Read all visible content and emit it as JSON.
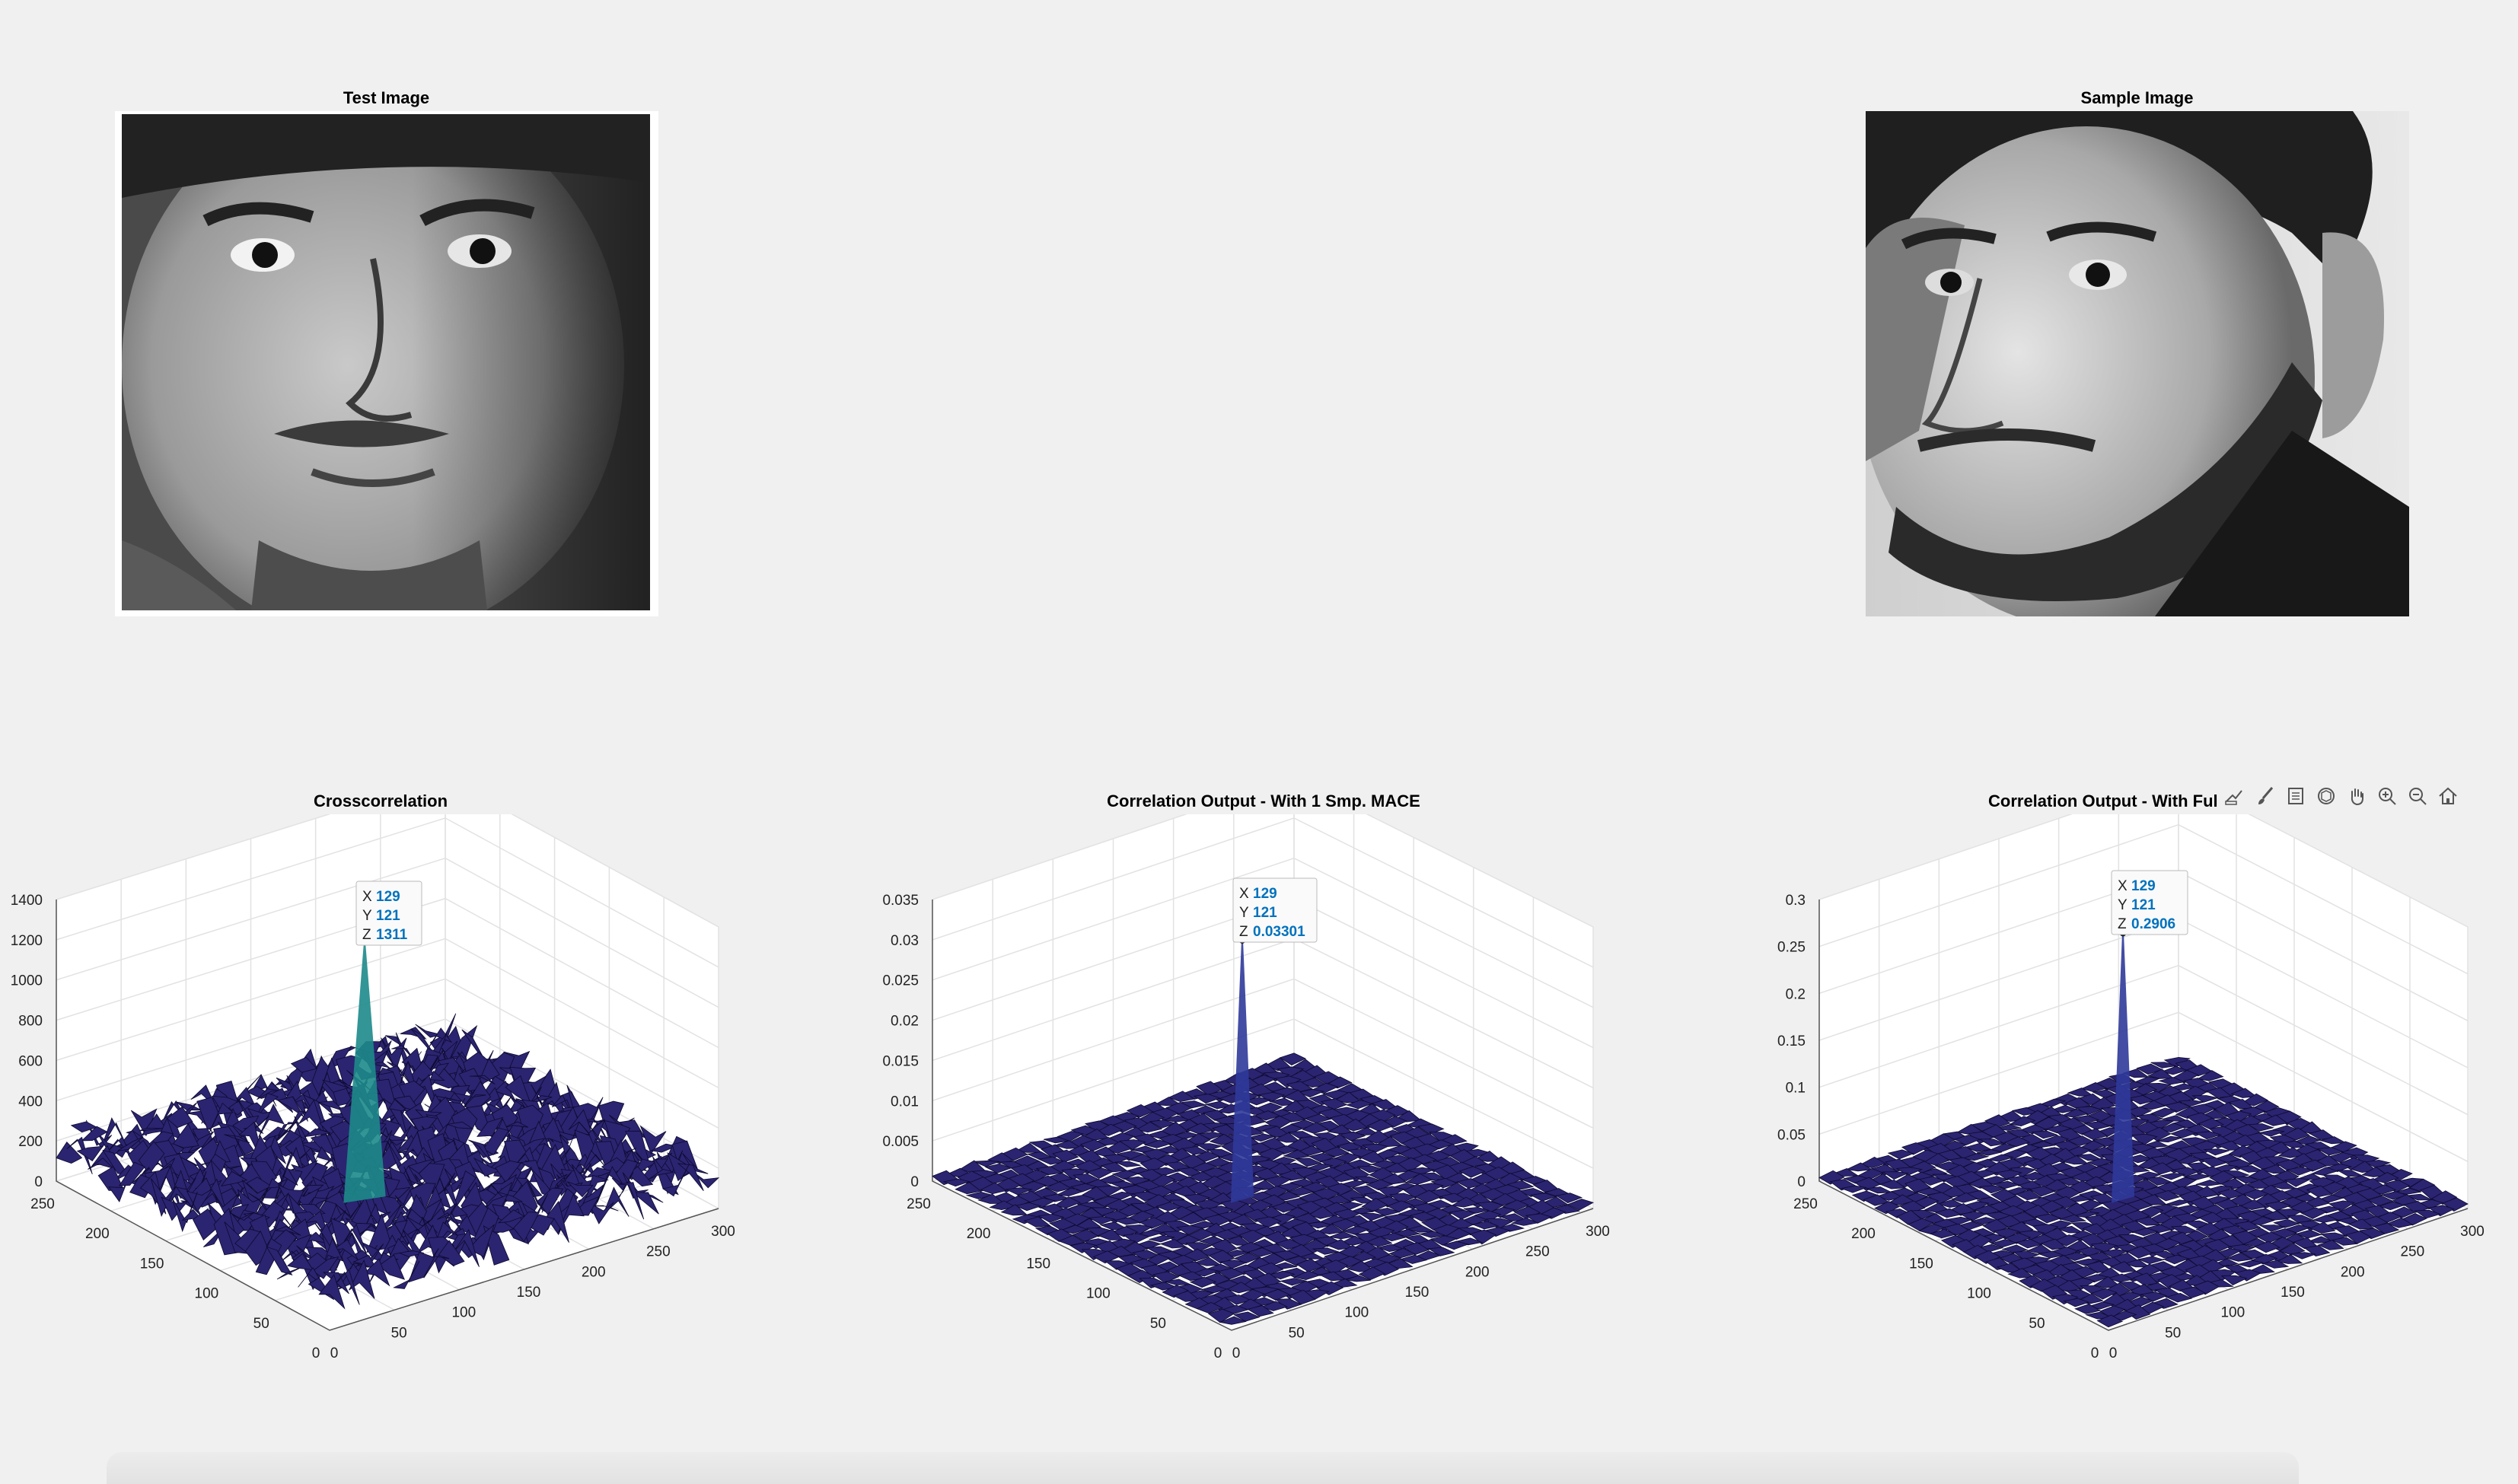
{
  "figure": {
    "test_image_title": "Test Image",
    "sample_image_title": "Sample Image"
  },
  "toolbar": {
    "icons": [
      "brush-edit-icon",
      "data-brush-icon",
      "legend-insert-icon",
      "rotate-3d-icon",
      "pan-hand-icon",
      "zoom-in-icon",
      "zoom-out-icon",
      "home-restore-view-icon"
    ]
  },
  "colors": {
    "surface": "#2b2470",
    "peak": "#1d8a8a",
    "datatip_value": "#0072bd",
    "background": "#f0f0f0"
  },
  "chart_data": [
    {
      "type": "surface",
      "title": "Crosscorrelation",
      "x_ticks": [
        "0",
        "50",
        "100",
        "150",
        "200",
        "250",
        "300"
      ],
      "y_ticks": [
        "0",
        "50",
        "100",
        "150",
        "200",
        "250"
      ],
      "z_ticks": [
        "0",
        "200",
        "400",
        "600",
        "800",
        "1000",
        "1200",
        "1400"
      ],
      "zlim": [
        0,
        1400
      ],
      "peak": {
        "x": 129,
        "y": 121,
        "z": 1311
      },
      "datatip": {
        "x_label": "X",
        "x_value": "129",
        "y_label": "Y",
        "y_value": "121",
        "z_label": "Z",
        "z_value": "1311"
      },
      "grid": true
    },
    {
      "type": "surface",
      "title": "Correlation Output - With 1 Smp. MACE",
      "x_ticks": [
        "0",
        "50",
        "100",
        "150",
        "200",
        "250",
        "300"
      ],
      "y_ticks": [
        "0",
        "50",
        "100",
        "150",
        "200",
        "250"
      ],
      "z_ticks": [
        "0",
        "0.005",
        "0.01",
        "0.015",
        "0.02",
        "0.025",
        "0.03",
        "0.035"
      ],
      "zlim": [
        0,
        0.035
      ],
      "peak": {
        "x": 129,
        "y": 121,
        "z": 0.03301
      },
      "datatip": {
        "x_label": "X",
        "x_value": "129",
        "y_label": "Y",
        "y_value": "121",
        "z_label": "Z",
        "z_value": "0.03301"
      },
      "grid": true
    },
    {
      "type": "surface",
      "title": "Correlation Output - With Ful",
      "x_ticks": [
        "0",
        "50",
        "100",
        "150",
        "200",
        "250",
        "300"
      ],
      "y_ticks": [
        "0",
        "50",
        "100",
        "150",
        "200",
        "250"
      ],
      "z_ticks": [
        "0",
        "0.05",
        "0.1",
        "0.15",
        "0.2",
        "0.25",
        "0.3"
      ],
      "zlim": [
        0,
        0.3
      ],
      "peak": {
        "x": 129,
        "y": 121,
        "z": 0.2906
      },
      "datatip": {
        "x_label": "X",
        "x_value": "129",
        "y_label": "Y",
        "y_value": "121",
        "z_label": "Z",
        "z_value": "0.2906"
      },
      "grid": true
    }
  ]
}
